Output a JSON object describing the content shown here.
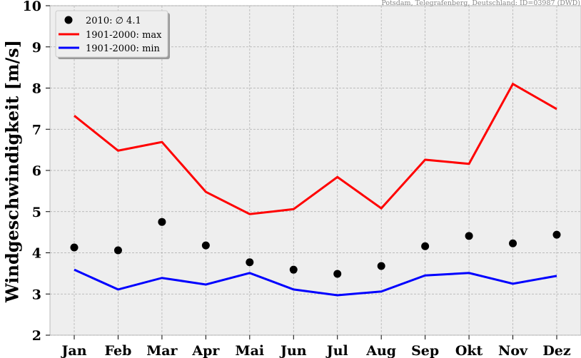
{
  "source_note": "Potsdam, Telegrafenberg, Deutschland: ID=03987 (DWD)",
  "chart_data": {
    "type": "line",
    "title": "",
    "xlabel": "",
    "ylabel": "Windgeschwindigkeit [m/s]",
    "ylim": [
      2,
      10
    ],
    "yticks": [
      "2",
      "3",
      "4",
      "5",
      "6",
      "7",
      "8",
      "9",
      "10"
    ],
    "categories": [
      "Jan",
      "Feb",
      "Mar",
      "Apr",
      "Mai",
      "Jun",
      "Jul",
      "Aug",
      "Sep",
      "Okt",
      "Nov",
      "Dez"
    ],
    "grid": true,
    "legend_position": "top-left",
    "series": [
      {
        "name": "2010: ∅ 4.1",
        "kind": "scatter",
        "color": "#000000",
        "values": [
          4.13,
          4.06,
          4.75,
          4.18,
          3.77,
          3.59,
          3.49,
          3.68,
          4.16,
          4.41,
          4.23,
          4.44
        ]
      },
      {
        "name": "1901-2000: max",
        "kind": "line",
        "color": "#ff0000",
        "values": [
          7.33,
          6.48,
          6.69,
          5.48,
          4.94,
          5.06,
          5.84,
          5.08,
          6.26,
          6.16,
          8.1,
          7.49
        ]
      },
      {
        "name": "1901-2000: min",
        "kind": "line",
        "color": "#0000ff",
        "values": [
          3.59,
          3.11,
          3.39,
          3.23,
          3.51,
          3.11,
          2.97,
          3.06,
          3.45,
          3.51,
          3.25,
          3.44
        ]
      }
    ]
  }
}
